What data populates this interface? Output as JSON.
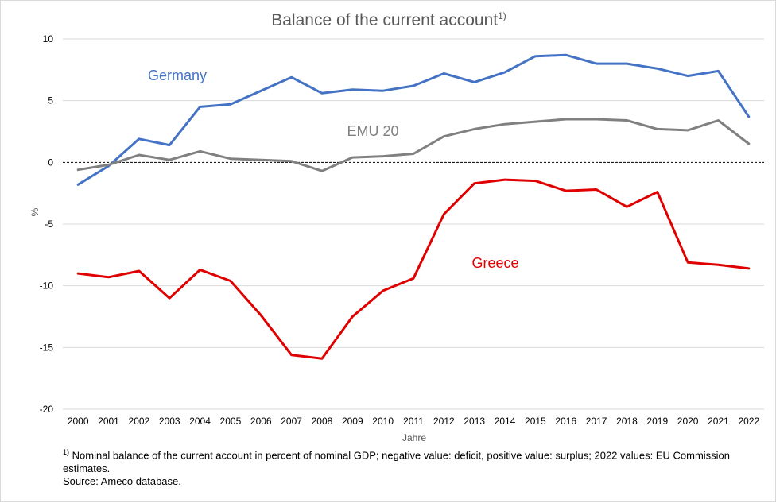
{
  "chart_data": {
    "type": "line",
    "title": "Balance of the current account",
    "title_superscript": "1)",
    "xlabel": "Jahre",
    "ylabel": "%",
    "ylim": [
      -20,
      10
    ],
    "yticks": [
      10,
      5,
      0,
      -5,
      -10,
      -15,
      -20
    ],
    "grid": true,
    "zero_line": "dashed",
    "categories": [
      "2000",
      "2001",
      "2002",
      "2003",
      "2004",
      "2005",
      "2006",
      "2007",
      "2008",
      "2009",
      "2010",
      "2011",
      "2012",
      "2013",
      "2014",
      "2015",
      "2016",
      "2017",
      "2018",
      "2019",
      "2020",
      "2021",
      "2022"
    ],
    "series": [
      {
        "name": "Germany",
        "color": "#4472c4",
        "values": [
          -1.8,
          -0.3,
          1.9,
          1.4,
          4.5,
          4.7,
          5.8,
          6.9,
          5.6,
          5.9,
          5.8,
          6.2,
          7.2,
          6.5,
          7.3,
          8.6,
          8.7,
          8.0,
          8.0,
          7.6,
          7.0,
          7.4,
          3.7
        ]
      },
      {
        "name": "EMU 20",
        "color": "#808080",
        "values": [
          -0.6,
          -0.2,
          0.6,
          0.2,
          0.9,
          0.3,
          0.2,
          0.1,
          -0.7,
          0.4,
          0.5,
          0.7,
          2.1,
          2.7,
          3.1,
          3.3,
          3.5,
          3.5,
          3.4,
          2.7,
          2.6,
          3.4,
          1.5
        ]
      },
      {
        "name": "Greece",
        "color": "#e00000",
        "values": [
          -9.0,
          -9.3,
          -8.8,
          -11.0,
          -8.7,
          -9.6,
          -12.4,
          -15.6,
          -15.9,
          -12.5,
          -10.4,
          -9.4,
          -4.2,
          -1.7,
          -1.4,
          -1.5,
          -2.3,
          -2.2,
          -3.6,
          -2.4,
          -8.1,
          -8.3,
          -8.6
        ]
      }
    ]
  },
  "footnote": {
    "marker": "1)",
    "text": "Nominal balance of the current account in percent of nominal GDP; negative value: deficit, positive value: surplus; 2022 values: EU Commission estimates."
  },
  "source": "Source: Ameco database."
}
